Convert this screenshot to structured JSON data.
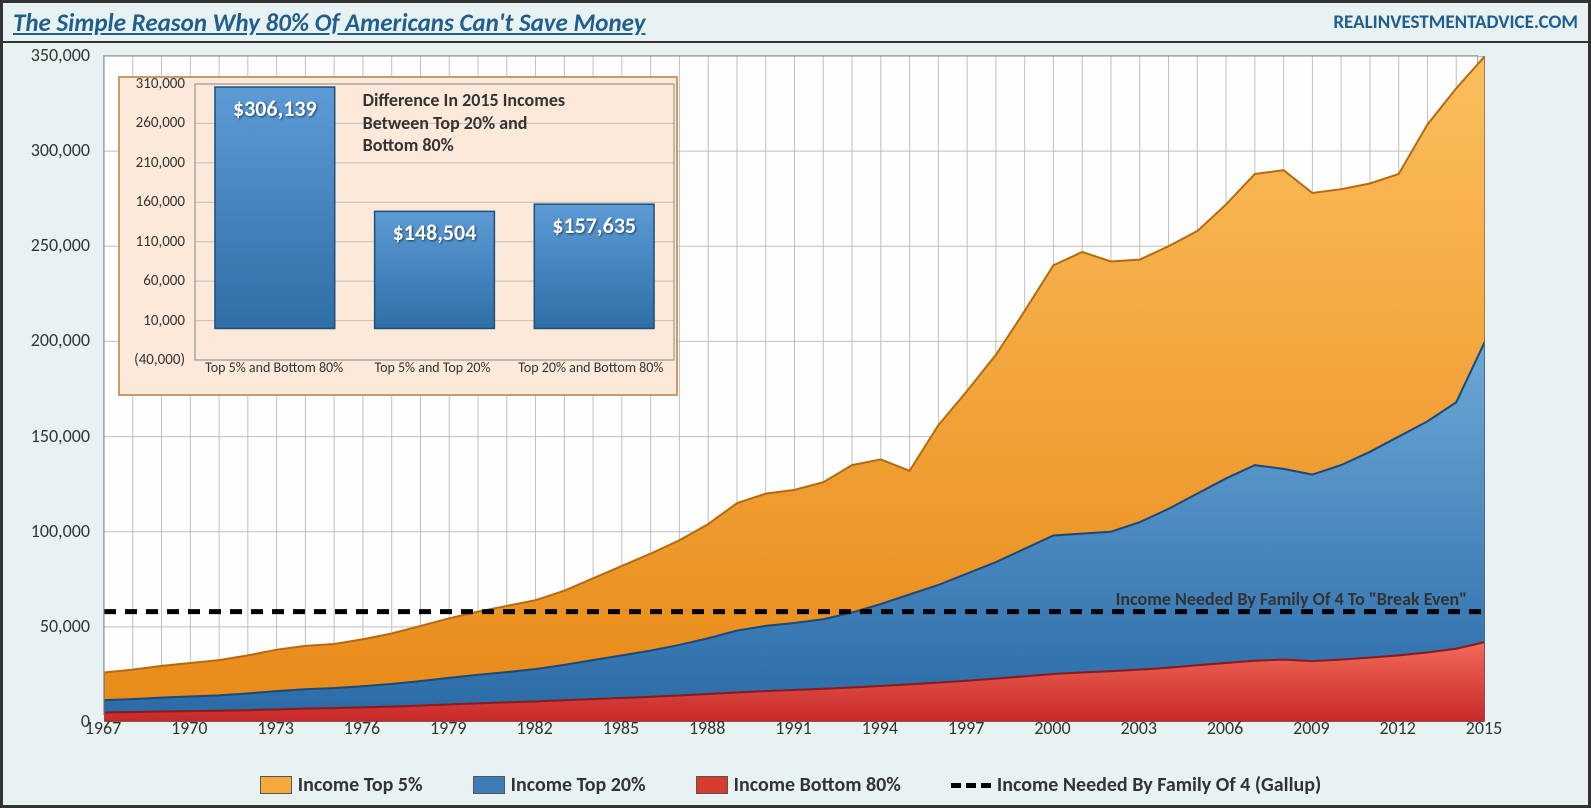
{
  "header": {
    "title": "The Simple Reason Why 80% Of Americans Can't Save Money",
    "source": "REALINVESTMENTADVICE.COM"
  },
  "main_chart": {
    "type": "stacked-area",
    "background_color": "#e8f2f2",
    "plot_bg": "#ffffff",
    "grid_color": "#bfbfbf",
    "border_color": "#333333",
    "x_years": [
      1967,
      1968,
      1969,
      1970,
      1971,
      1972,
      1973,
      1974,
      1975,
      1976,
      1977,
      1978,
      1979,
      1980,
      1981,
      1982,
      1983,
      1984,
      1985,
      1986,
      1987,
      1988,
      1989,
      1990,
      1991,
      1992,
      1993,
      1994,
      1995,
      1996,
      1997,
      1998,
      1999,
      2000,
      2001,
      2002,
      2003,
      2004,
      2005,
      2006,
      2007,
      2008,
      2009,
      2010,
      2011,
      2012,
      2013,
      2014,
      2015
    ],
    "x_tick_years": [
      1967,
      1970,
      1973,
      1976,
      1979,
      1982,
      1985,
      1988,
      1991,
      1994,
      1997,
      2000,
      2003,
      2006,
      2009,
      2012,
      2015
    ],
    "y_min": 0,
    "y_max": 350000,
    "y_tick_step": 50000,
    "y_tick_labels": [
      "0",
      "50,000",
      "100,000",
      "150,000",
      "200,000",
      "250,000",
      "300,000",
      "350,000"
    ],
    "colors": {
      "top5_fill_top": "#fbbf5e",
      "top5_fill_bot": "#e88b1a",
      "top5_stroke": "#b56a0f",
      "top20_fill_top": "#6ca8d8",
      "top20_fill_bot": "#2b6ca8",
      "top20_stroke": "#1b497a",
      "bot80_fill_top": "#f26a5a",
      "bot80_fill_bot": "#c62828",
      "bot80_stroke": "#8e1b1b"
    },
    "series": {
      "bottom80": [
        5000,
        5200,
        5500,
        5700,
        5900,
        6200,
        6600,
        7000,
        7300,
        7700,
        8100,
        8600,
        9200,
        9800,
        10300,
        10800,
        11400,
        12000,
        12600,
        13200,
        13900,
        14700,
        15500,
        16200,
        16800,
        17400,
        18100,
        18900,
        19800,
        20700,
        21700,
        22800,
        24000,
        25200,
        26000,
        26700,
        27500,
        28500,
        29800,
        31000,
        32200,
        32800,
        32000,
        32800,
        33800,
        35000,
        36500,
        38500,
        42000
      ],
      "top20": [
        11500,
        12000,
        12800,
        13400,
        14000,
        15000,
        16200,
        17200,
        17800,
        18800,
        20000,
        21500,
        23200,
        24800,
        26200,
        27800,
        30000,
        32500,
        35000,
        37500,
        40500,
        44000,
        48000,
        50500,
        52000,
        54000,
        57500,
        62000,
        67000,
        72000,
        78000,
        84000,
        91000,
        98000,
        99000,
        100000,
        105000,
        112000,
        120000,
        128000,
        135000,
        133000,
        130000,
        135000,
        142000,
        150000,
        158000,
        168000,
        200000
      ],
      "top5": [
        26000,
        27500,
        29500,
        31000,
        32500,
        35000,
        38000,
        40000,
        41000,
        43500,
        46500,
        50500,
        54500,
        58000,
        61000,
        64000,
        69000,
        75500,
        82000,
        88500,
        95500,
        104000,
        115000,
        120000,
        122000,
        126000,
        135000,
        138000,
        132000,
        156000,
        174000,
        193000,
        216000,
        240000,
        247000,
        242000,
        243000,
        250000,
        258000,
        272000,
        288000,
        290000,
        278000,
        280000,
        283000,
        288000,
        314000,
        333000,
        350000
      ]
    },
    "break_even": {
      "value": 58000,
      "label": "Income Needed By Family Of 4 To \"Break Even\"",
      "dash_color": "#000000"
    }
  },
  "inset_chart": {
    "type": "bar",
    "title": "Difference In 2015 Incomes Between Top 20% and Bottom 80%",
    "background_color": "#fde9d9",
    "border_color": "#c89b6c",
    "bar_fill_top": "#5c9bd5",
    "bar_fill_bot": "#2f6fa8",
    "bar_stroke": "#1f4e79",
    "y_min": -40000,
    "y_max": 310000,
    "y_ticks": [
      -40000,
      10000,
      60000,
      110000,
      160000,
      210000,
      260000,
      310000
    ],
    "y_tick_labels": [
      "(40,000)",
      "10,000",
      "60,000",
      "110,000",
      "160,000",
      "210,000",
      "260,000",
      "310,000"
    ],
    "categories": [
      "Top 5% and Bottom 80%",
      "Top 5% and Top 20%",
      "Top 20% and Bottom 80%"
    ],
    "values": [
      306139,
      148504,
      157635
    ],
    "value_labels": [
      "$306,139",
      "$148,504",
      "$157,635"
    ]
  },
  "legend": {
    "items": [
      {
        "label": "Income Top 5%",
        "type": "swatch",
        "color": "#f5a93a"
      },
      {
        "label": "Income Top 20%",
        "type": "swatch",
        "color": "#3d7db5"
      },
      {
        "label": "Income Bottom 80%",
        "type": "swatch",
        "color": "#d63c2e"
      },
      {
        "label": "Income Needed By Family Of 4 (Gallup)",
        "type": "dash",
        "color": "#000000"
      }
    ]
  }
}
